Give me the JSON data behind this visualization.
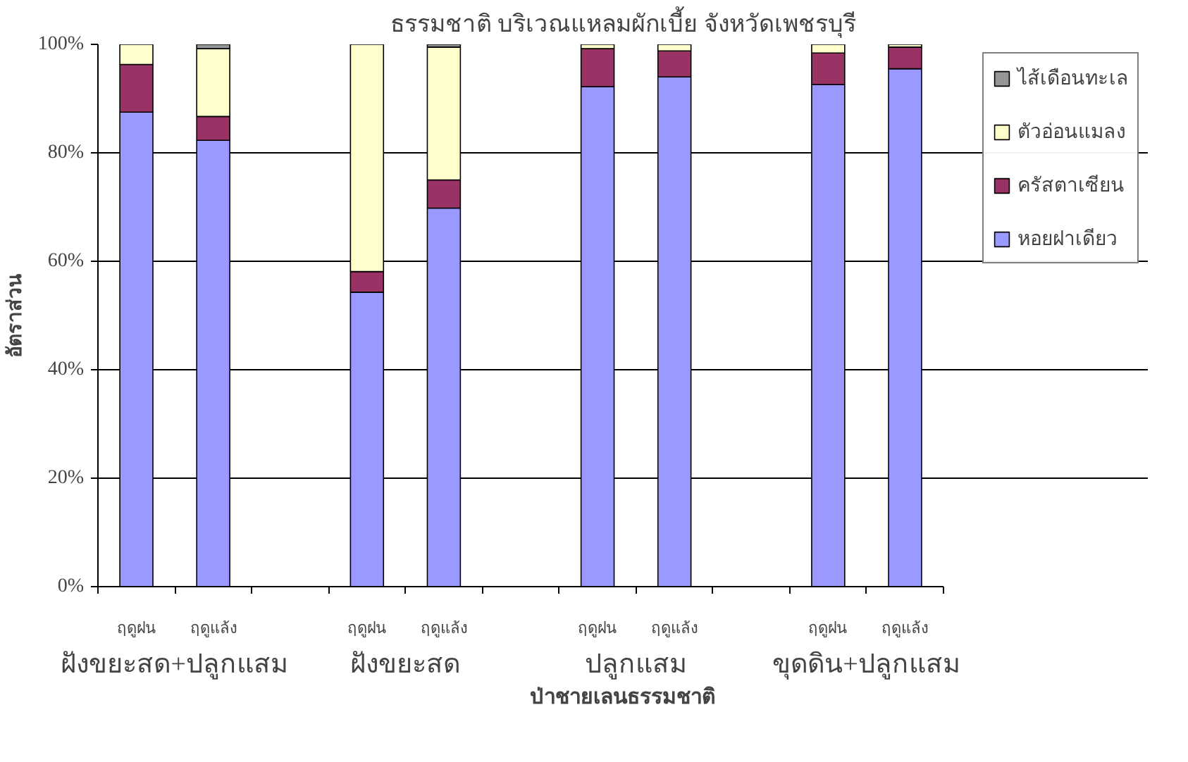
{
  "chart_data": {
    "type": "bar",
    "stacked": true,
    "title": "ธรรมชาติ บริเวณแหลมผักเบี้ย จังหวัดเพชรบุรี",
    "categories": [
      "ฤดูฝน",
      "ฤดูแล้ง",
      null,
      "ฤดูฝน",
      "ฤดูแล้ง",
      null,
      "ฤดูฝน",
      "ฤดูแล้ง",
      null,
      "ฤดูฝน",
      "ฤดูแล้ง"
    ],
    "series": [
      {
        "name": "หอยฝาเดียว",
        "color": "#9999ff",
        "values": [
          87.5,
          82.3,
          null,
          54.3,
          69.8,
          null,
          92.2,
          94.0,
          null,
          92.6,
          95.5
        ]
      },
      {
        "name": "ครัสตาเซียน",
        "color": "#993366",
        "values": [
          8.8,
          4.4,
          null,
          3.8,
          5.2,
          null,
          7.0,
          4.8,
          null,
          5.8,
          4.0
        ]
      },
      {
        "name": "ตัวอ่อนแมลง",
        "color": "#ffffcc",
        "values": [
          3.7,
          12.5,
          null,
          41.9,
          24.5,
          null,
          0.8,
          1.2,
          null,
          1.6,
          0.5
        ]
      },
      {
        "name": "ไส้เดือนทะเล",
        "color": "#969696",
        "values": [
          0,
          0.8,
          null,
          0,
          0.5,
          null,
          0,
          0,
          null,
          0,
          0
        ]
      }
    ],
    "annotations": [
      "ฝังขยะสด+ปลูกแสม",
      "ฝังขยะสด",
      "ปลูกแสม",
      "ขุดดิน+ปลูกแสม"
    ],
    "xlabel": "ป่าชายเลนธรรมชาติ",
    "ylabel": "อัตราส่วน",
    "ylim": [
      0,
      100
    ],
    "yticks": [
      {
        "value": 0,
        "label": "0%"
      },
      {
        "value": 20,
        "label": "20%"
      },
      {
        "value": 40,
        "label": "40%"
      },
      {
        "value": 60,
        "label": "60%"
      },
      {
        "value": 80,
        "label": "80%"
      },
      {
        "value": 100,
        "label": "100%"
      }
    ],
    "grid": "y",
    "legend": "right"
  }
}
